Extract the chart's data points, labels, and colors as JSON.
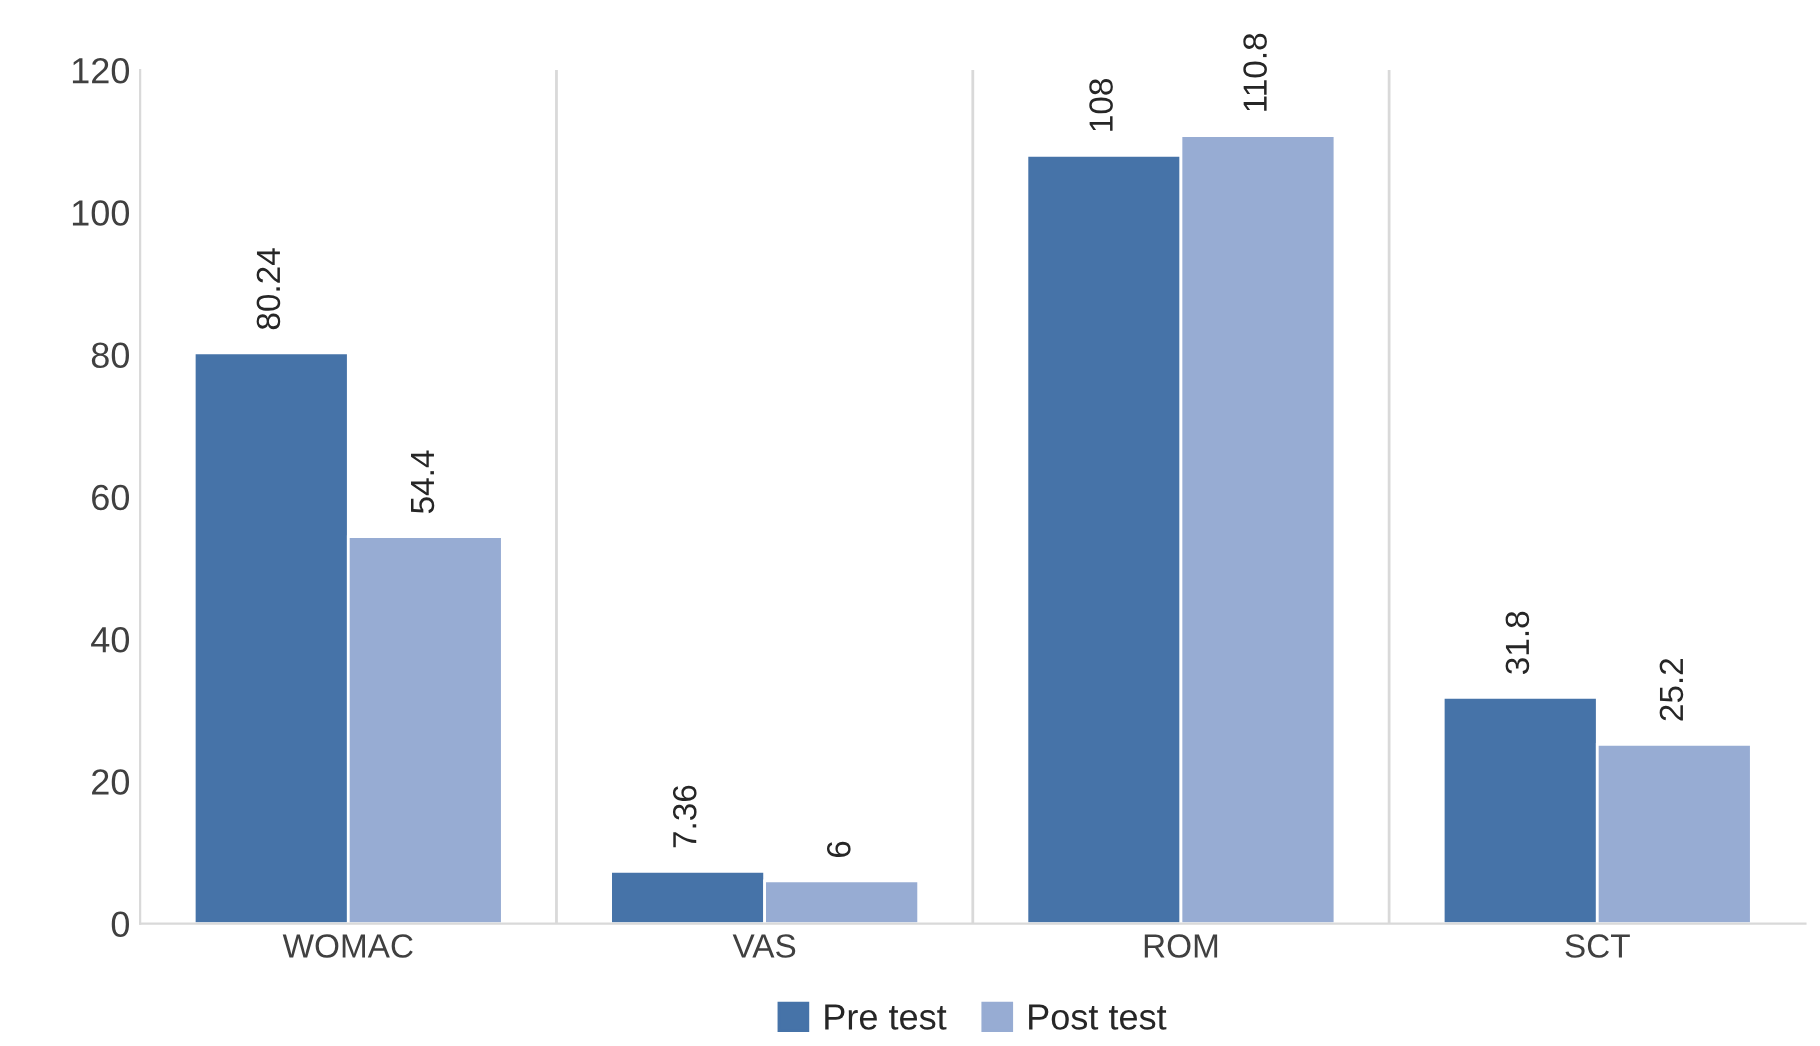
{
  "chart_data": {
    "type": "bar",
    "categories": [
      "WOMAC",
      "VAS",
      "ROM",
      "SCT"
    ],
    "series": [
      {
        "name": "Pre test",
        "color": "#4673a8",
        "values": [
          80.24,
          7.36,
          108,
          31.8
        ]
      },
      {
        "name": "Post test",
        "color": "#97acd3",
        "values": [
          54.4,
          6,
          110.8,
          25.2
        ]
      }
    ],
    "ylim": [
      0,
      120
    ],
    "yticks": [
      0,
      20,
      40,
      60,
      80,
      100,
      120
    ],
    "grid": "x",
    "legend": "bottom",
    "data_labels": true
  }
}
